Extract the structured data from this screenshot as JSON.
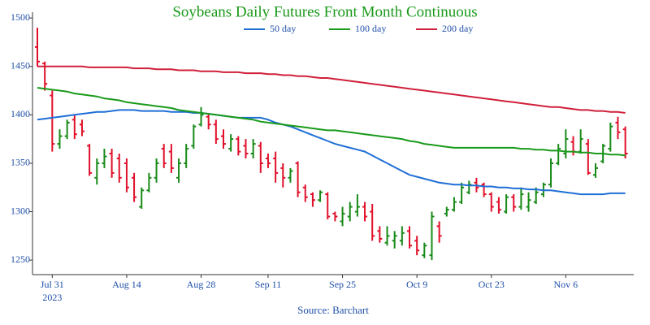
{
  "chart_data": {
    "type": "ohlc",
    "title": "Soybeans Daily Futures Front Month Continuous",
    "source": "Source: Barchart",
    "year_label": "2023",
    "categories": [
      null,
      null,
      "Jul 31",
      null,
      null,
      null,
      null,
      null,
      null,
      null,
      null,
      null,
      "Aug 14",
      null,
      null,
      null,
      null,
      null,
      null,
      null,
      null,
      null,
      "Aug 28",
      null,
      null,
      null,
      null,
      null,
      null,
      null,
      null,
      "Sep 11",
      null,
      null,
      null,
      null,
      null,
      null,
      null,
      null,
      null,
      "Sep 25",
      null,
      null,
      null,
      null,
      null,
      null,
      null,
      null,
      null,
      "Oct 9",
      null,
      null,
      null,
      null,
      null,
      null,
      null,
      null,
      null,
      "Oct 23",
      null,
      null,
      null,
      null,
      null,
      null,
      null,
      null,
      null,
      "Nov 6",
      null,
      null,
      null,
      null,
      null,
      null,
      null,
      null
    ],
    "open": [
      1470,
      1453,
      1420,
      1370,
      1378,
      1395,
      1390,
      1368,
      1335,
      1350,
      1360,
      1355,
      1350,
      1335,
      1305,
      1322,
      1335,
      1365,
      1362,
      1335,
      1350,
      1368,
      1390,
      1398,
      1390,
      1378,
      1365,
      1375,
      1368,
      1360,
      1368,
      1355,
      1355,
      1345,
      1335,
      1350,
      1325,
      1318,
      1312,
      1318,
      1298,
      1290,
      1295,
      1300,
      1305,
      1300,
      1280,
      1268,
      1270,
      1270,
      1280,
      1270,
      1255,
      1255,
      1285,
      1298,
      1302,
      1310,
      1320,
      1330,
      1328,
      1318,
      1310,
      1300,
      1315,
      1305,
      1305,
      1310,
      1318,
      1328,
      1350,
      1360,
      1372,
      1362,
      1370,
      1338,
      1352,
      1365,
      1392,
      1385
    ],
    "high": [
      1490,
      1455,
      1425,
      1385,
      1395,
      1400,
      1395,
      1370,
      1355,
      1365,
      1365,
      1360,
      1355,
      1340,
      1325,
      1340,
      1355,
      1370,
      1370,
      1355,
      1370,
      1390,
      1408,
      1402,
      1395,
      1385,
      1380,
      1378,
      1375,
      1375,
      1372,
      1360,
      1362,
      1350,
      1345,
      1352,
      1328,
      1320,
      1322,
      1320,
      1300,
      1305,
      1310,
      1318,
      1310,
      1308,
      1285,
      1285,
      1280,
      1285,
      1285,
      1275,
      1268,
      1300,
      1290,
      1305,
      1315,
      1330,
      1332,
      1335,
      1330,
      1320,
      1315,
      1318,
      1318,
      1325,
      1320,
      1325,
      1330,
      1355,
      1370,
      1385,
      1378,
      1385,
      1375,
      1350,
      1370,
      1392,
      1398,
      1388
    ],
    "low": [
      1450,
      1425,
      1362,
      1365,
      1375,
      1375,
      1378,
      1337,
      1328,
      1345,
      1335,
      1330,
      1320,
      1310,
      1303,
      1320,
      1330,
      1345,
      1340,
      1330,
      1345,
      1365,
      1388,
      1385,
      1370,
      1365,
      1362,
      1358,
      1355,
      1355,
      1340,
      1345,
      1330,
      1325,
      1330,
      1315,
      1310,
      1305,
      1310,
      1292,
      1290,
      1285,
      1290,
      1295,
      1290,
      1270,
      1268,
      1265,
      1262,
      1265,
      1262,
      1255,
      1252,
      1250,
      1268,
      1295,
      1300,
      1308,
      1318,
      1320,
      1315,
      1300,
      1298,
      1298,
      1300,
      1302,
      1300,
      1308,
      1315,
      1325,
      1348,
      1355,
      1358,
      1360,
      1338,
      1335,
      1350,
      1362,
      1375,
      1355
    ],
    "close": [
      1455,
      1432,
      1370,
      1378,
      1392,
      1380,
      1383,
      1340,
      1350,
      1357,
      1340,
      1335,
      1325,
      1315,
      1322,
      1335,
      1350,
      1350,
      1345,
      1350,
      1365,
      1388,
      1400,
      1390,
      1375,
      1370,
      1375,
      1362,
      1360,
      1370,
      1350,
      1350,
      1340,
      1335,
      1342,
      1320,
      1315,
      1312,
      1320,
      1295,
      1295,
      1298,
      1305,
      1305,
      1295,
      1275,
      1272,
      1275,
      1275,
      1278,
      1265,
      1260,
      1265,
      1295,
      1275,
      1302,
      1310,
      1325,
      1328,
      1325,
      1318,
      1305,
      1302,
      1315,
      1305,
      1318,
      1312,
      1320,
      1328,
      1350,
      1365,
      1375,
      1362,
      1375,
      1340,
      1345,
      1368,
      1388,
      1382,
      1360
    ],
    "up_color": "#188a18",
    "down_color": "#e0102a",
    "series": [
      {
        "name": "50 day",
        "color": "#1f6fd6",
        "values": [
          1395,
          1396,
          1397,
          1398,
          1399,
          1400,
          1401,
          1402,
          1403,
          1403,
          1404,
          1405,
          1405,
          1405,
          1404,
          1404,
          1404,
          1404,
          1403,
          1403,
          1403,
          1402,
          1402,
          1401,
          1400,
          1399,
          1398,
          1397,
          1397,
          1397,
          1397,
          1395,
          1392,
          1390,
          1388,
          1385,
          1382,
          1379,
          1376,
          1373,
          1370,
          1368,
          1366,
          1364,
          1362,
          1358,
          1354,
          1350,
          1346,
          1342,
          1338,
          1336,
          1334,
          1332,
          1330,
          1329,
          1328,
          1328,
          1327,
          1327,
          1326,
          1326,
          1325,
          1325,
          1324,
          1324,
          1323,
          1323,
          1322,
          1322,
          1321,
          1320,
          1319,
          1318,
          1318,
          1318,
          1318,
          1319,
          1319,
          1319
        ]
      },
      {
        "name": "100 day",
        "color": "#1a9a1a",
        "values": [
          1428,
          1427,
          1426,
          1425,
          1424,
          1422,
          1421,
          1420,
          1419,
          1417,
          1416,
          1415,
          1413,
          1412,
          1411,
          1410,
          1409,
          1408,
          1407,
          1405,
          1404,
          1403,
          1402,
          1401,
          1400,
          1399,
          1398,
          1397,
          1396,
          1395,
          1393,
          1392,
          1391,
          1390,
          1389,
          1388,
          1387,
          1386,
          1385,
          1384,
          1384,
          1383,
          1382,
          1381,
          1380,
          1379,
          1378,
          1377,
          1376,
          1375,
          1373,
          1372,
          1370,
          1369,
          1368,
          1367,
          1366,
          1366,
          1366,
          1366,
          1366,
          1366,
          1366,
          1366,
          1366,
          1365,
          1365,
          1364,
          1364,
          1363,
          1363,
          1362,
          1362,
          1361,
          1361,
          1360,
          1360,
          1359,
          1359,
          1358
        ]
      },
      {
        "name": "200 day",
        "color": "#d0203a",
        "values": [
          1450,
          1450,
          1450,
          1450,
          1450,
          1450,
          1450,
          1449,
          1449,
          1449,
          1449,
          1449,
          1449,
          1448,
          1448,
          1448,
          1447,
          1447,
          1447,
          1446,
          1446,
          1446,
          1445,
          1445,
          1445,
          1444,
          1444,
          1444,
          1443,
          1443,
          1443,
          1442,
          1442,
          1441,
          1441,
          1440,
          1440,
          1439,
          1438,
          1438,
          1437,
          1436,
          1435,
          1434,
          1433,
          1432,
          1431,
          1430,
          1429,
          1428,
          1427,
          1426,
          1425,
          1424,
          1423,
          1422,
          1421,
          1420,
          1419,
          1418,
          1417,
          1416,
          1415,
          1414,
          1413,
          1412,
          1411,
          1410,
          1409,
          1408,
          1408,
          1407,
          1406,
          1405,
          1405,
          1404,
          1404,
          1403,
          1403,
          1402
        ]
      }
    ],
    "ylim": [
      1235,
      1506
    ],
    "yticks": [
      1250,
      1300,
      1350,
      1400,
      1450,
      1500
    ],
    "grid": false
  }
}
